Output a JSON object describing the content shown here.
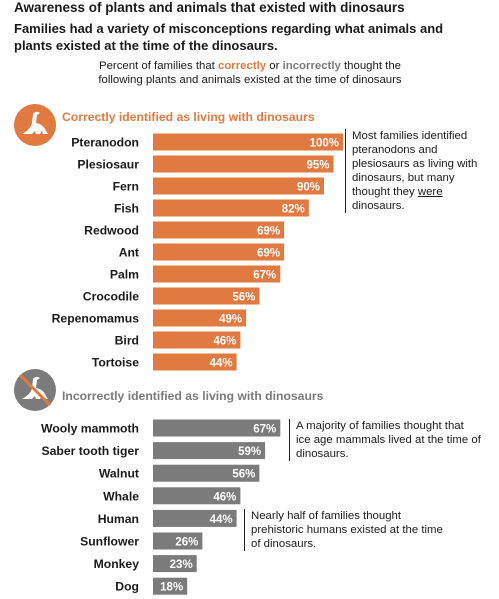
{
  "title": "Awareness of plants and animals that existed with dinosaurs",
  "subtitle": "Families had a variety of misconceptions regarding what animals and plants existed at the time of the dinosaurs.",
  "description": {
    "line1_prefix": "Percent of families that ",
    "correctly": "correctly",
    "or": " or ",
    "incorrectly": "incorrectly",
    "line1_suffix": " thought the",
    "line2": "following plants and animals existed at the time of dinosaurs"
  },
  "colors": {
    "correct": "#e07a40",
    "incorrect": "#7b7b7b",
    "text": "#1a1a1a"
  },
  "chart_data": [
    {
      "type": "bar",
      "title": "Correctly identified as living with dinosaurs",
      "icon": "dinosaur-icon",
      "categories": [
        "Pteranodon",
        "Plesiosaur",
        "Fern",
        "Fish",
        "Redwood",
        "Ant",
        "Palm",
        "Crocodile",
        "Repenomamus",
        "Bird",
        "Tortoise"
      ],
      "values": [
        100,
        95,
        90,
        82,
        69,
        69,
        67,
        56,
        49,
        46,
        44
      ],
      "unit": "%",
      "xlim": [
        0,
        100
      ]
    },
    {
      "type": "bar",
      "title": "Incorrectly identified as living with dinosaurs",
      "icon": "no-dinosaur-icon",
      "categories": [
        "Wooly mammoth",
        "Saber tooth tiger",
        "Walnut",
        "Whale",
        "Human",
        "Sunflower",
        "Monkey",
        "Dog"
      ],
      "values": [
        67,
        59,
        56,
        46,
        44,
        26,
        23,
        18
      ],
      "unit": "%",
      "xlim": [
        0,
        100
      ]
    }
  ],
  "annotations": {
    "correct": {
      "lines": [
        "Most families identified",
        "pteranodons and",
        "plesiosaurs as living with",
        "dinosaurs, but many"
      ],
      "last_prefix": "thought they ",
      "last_underlined": "were",
      "last_suffix": "",
      "last_line2": "dinosaurs."
    },
    "mammals": {
      "lines": [
        "A majority of families thought that",
        "ice age mammals lived at the time of",
        "dinosaurs."
      ]
    },
    "humans": {
      "lines": [
        "Nearly half of families thought",
        "prehistoric humans existed at the time",
        "of dinosaurs."
      ]
    }
  }
}
